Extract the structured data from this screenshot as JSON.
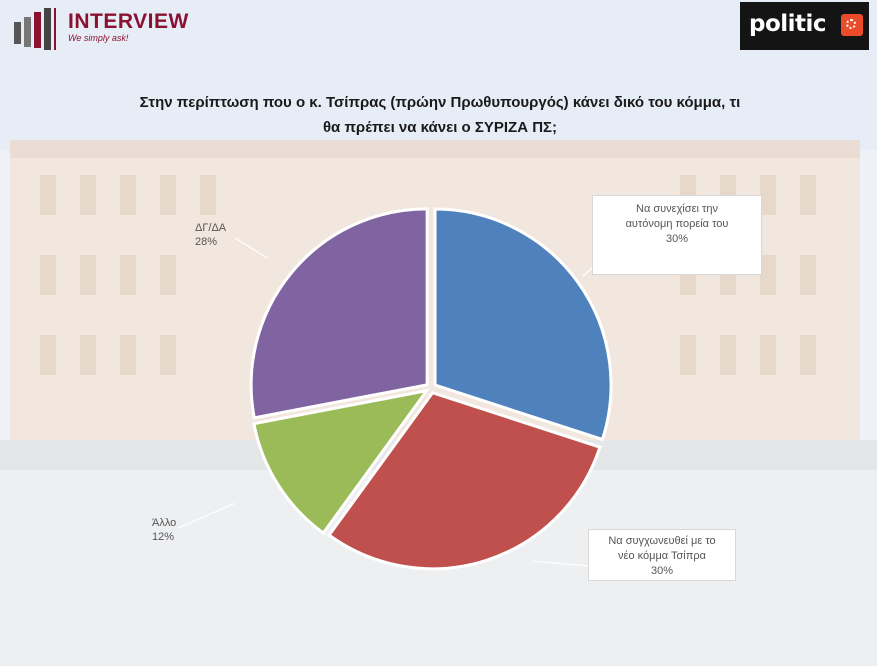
{
  "brand": {
    "left_name": "INTERVIEW",
    "left_tagline": "We simply ask!",
    "right_name": "politic"
  },
  "colors": {
    "blue": "#4f81bd",
    "red": "#c0504d",
    "green": "#9bbb59",
    "purple": "#8064a2"
  },
  "chart_data": {
    "type": "pie",
    "title": "Στην περίπτωση που ο κ. Τσίπρας (πρώην Πρωθυπουργός) κάνει δικό του κόμμα, τι θα πρέπει να κάνει ο ΣΥΡΙΖΑ ΠΣ;",
    "title_lines": [
      "Στην περίπτωση που ο κ. Τσίπρας (πρώην Πρωθυπουργός) κάνει δικό του κόμμα, τι",
      "θα πρέπει να κάνει ο ΣΥΡΙΖΑ ΠΣ;"
    ],
    "slices": [
      {
        "label_lines": [
          "Να συνεχίσει την",
          "αυτόνομη πορεία του"
        ],
        "value": 30,
        "value_label": "30%",
        "color": "#4f81bd"
      },
      {
        "label_lines": [
          "Να συγχωνευθεί με το",
          "νέο κόμμα Τσίπρα"
        ],
        "value": 30,
        "value_label": "30%",
        "color": "#c0504d"
      },
      {
        "label_lines": [
          "Άλλο"
        ],
        "value": 12,
        "value_label": "12%",
        "color": "#9bbb59"
      },
      {
        "label_lines": [
          "ΔΓ/ΔΑ"
        ],
        "value": 28,
        "value_label": "28%",
        "color": "#8064a2"
      }
    ]
  }
}
